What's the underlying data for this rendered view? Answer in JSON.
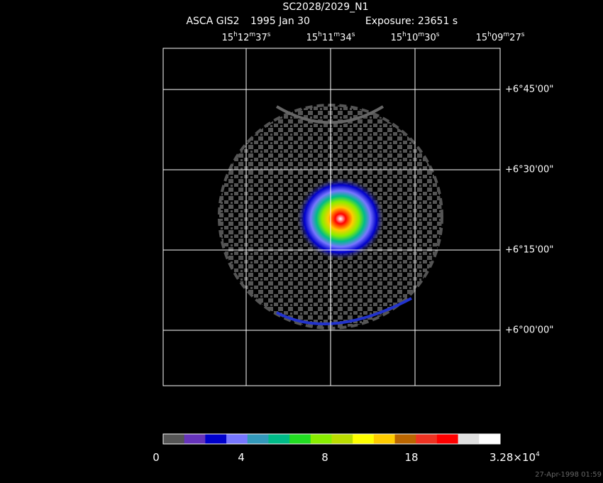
{
  "title": "SC2028/2029_N1",
  "subtitle": [
    "ASCA GIS2",
    "1995 Jan 30",
    "Exposure: 23651 s"
  ],
  "ra_labels": [
    [
      "15",
      "h",
      "12",
      "m",
      "37",
      "s"
    ],
    [
      "15",
      "h",
      "11",
      "m",
      "34",
      "s"
    ],
    [
      "15",
      "h",
      "10",
      "m",
      "30",
      "s"
    ],
    [
      "15",
      "h",
      "09",
      "m",
      "27",
      "s"
    ]
  ],
  "dec_labels": [
    "+6°45'00\"",
    "+6°30'00\"",
    "+6°15'00\"",
    "+6°00'00\""
  ],
  "colorbar": {
    "colors": [
      "#555555",
      "#6633bb",
      "#0000cc",
      "#7777ff",
      "#3399bb",
      "#00bb88",
      "#22dd22",
      "#88ee00",
      "#bbdd00",
      "#ffff00",
      "#ffcc00",
      "#bb6600",
      "#ee3322",
      "#ff0000",
      "#e0e0e0",
      "#ffffff"
    ],
    "labels": [
      [
        "0"
      ],
      [
        "4"
      ],
      [
        "8"
      ],
      [
        "18"
      ],
      [
        "3.28×10",
        "4"
      ]
    ]
  },
  "timestamp": "27-Apr-1998 01:59"
}
